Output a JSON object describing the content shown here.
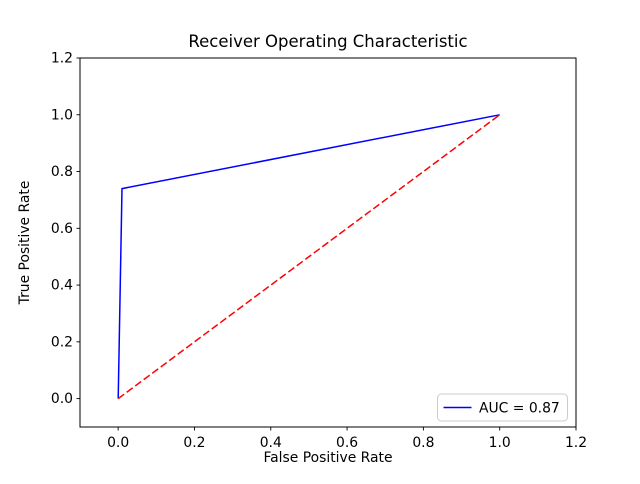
{
  "figure": {
    "background_color": "#ffffff",
    "text_color": "#000000",
    "axis_color": "#000000"
  },
  "chart_data": {
    "type": "line",
    "title": "Receiver Operating Characteristic",
    "xlabel": "False Positive Rate",
    "ylabel": "True Positive Rate",
    "xlim": [
      -0.1,
      1.2
    ],
    "ylim": [
      -0.1,
      1.2
    ],
    "xticks": [
      0.0,
      0.2,
      0.4,
      0.6,
      0.8,
      1.0,
      1.2
    ],
    "yticks": [
      0.0,
      0.2,
      0.4,
      0.6,
      0.8,
      1.0,
      1.2
    ],
    "grid": false,
    "series": [
      {
        "name": "roc-curve",
        "legend_label": "AUC = 0.87",
        "color": "#0000ff",
        "style": "solid",
        "x": [
          0.0,
          0.01,
          1.0
        ],
        "y": [
          0.0,
          0.74,
          1.0
        ]
      },
      {
        "name": "chance-diagonal",
        "legend_label": null,
        "color": "#ff0000",
        "style": "dashed",
        "x": [
          0.0,
          1.0
        ],
        "y": [
          0.0,
          1.0
        ]
      }
    ],
    "legend": {
      "position": "lower right",
      "label": "AUC = 0.87",
      "border_color": "#cccccc",
      "background_color": "#ffffff"
    }
  }
}
